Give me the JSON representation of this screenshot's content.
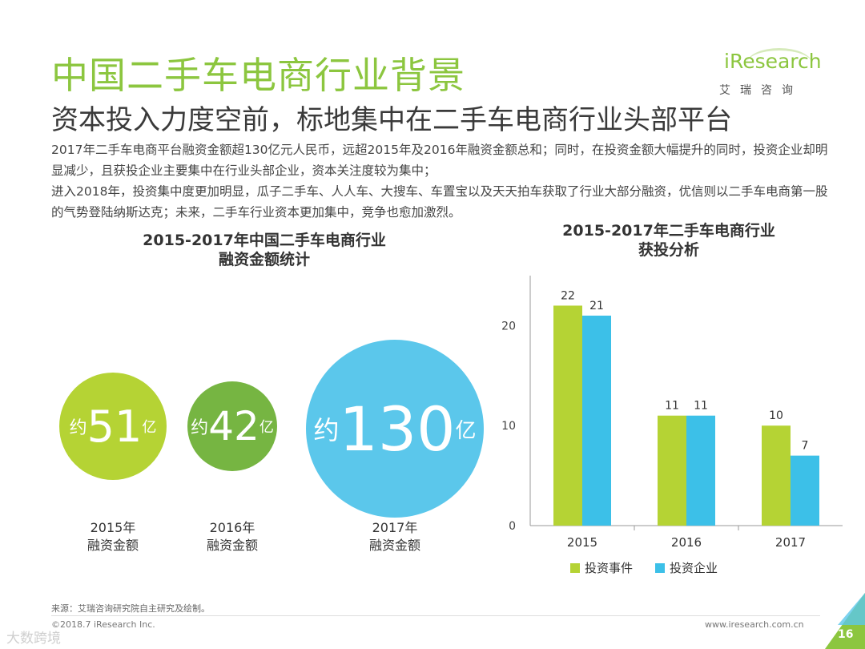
{
  "header": {
    "title": "中国二手车电商行业背景",
    "subtitle": "资本投入力度空前，标地集中在二手车电商行业头部平台",
    "para1": "2017年二手车电商平台融资金额超130亿元人民币，远超2015年及2016年融资金额总和；同时，在投资金额大幅提升的同时，投资企业却明显减少，且获投企业主要集中在行业头部企业，资本关注度较为集中；",
    "para2": "进入2018年，投资集中度更加明显，瓜子二手车、人人车、大搜车、车置宝以及天天拍车获取了行业大部分融资，优信则以二手车电商第一股的气势登陆纳斯达克；未来，二手车行业资本更加集中，竞争也愈加激烈。"
  },
  "logo": {
    "text": "iResearch",
    "sub": "艾瑞咨询"
  },
  "bubbles": {
    "title_line1": "2015-2017年中国二手车电商行业",
    "title_line2": "融资金额统计",
    "prefix": "约",
    "suffix": "亿",
    "items": [
      {
        "value": "51",
        "year": "2015年",
        "label": "融资金额",
        "color": "#b5d334"
      },
      {
        "value": "42",
        "year": "2016年",
        "label": "融资金额",
        "color": "#76b542"
      },
      {
        "value": "130",
        "year": "2017年",
        "label": "融资金额",
        "color": "#5bc7eb"
      }
    ]
  },
  "chart_data": {
    "type": "bar",
    "title": "2015-2017年二手车电商行业获投分析",
    "title_line1": "2015-2017年二手车电商行业",
    "title_line2": "获投分析",
    "categories": [
      "2015",
      "2016",
      "2017"
    ],
    "series": [
      {
        "name": "投资事件",
        "values": [
          22,
          11,
          10
        ],
        "color": "#b5d334"
      },
      {
        "name": "投资企业",
        "values": [
          21,
          11,
          7
        ],
        "color": "#3cc0e8"
      }
    ],
    "yticks": [
      0,
      10,
      20
    ],
    "ylim": [
      0,
      25
    ],
    "grid": false,
    "legend": "bottom"
  },
  "footer": {
    "source": "来源：艾瑞咨询研究院自主研究及绘制。",
    "copyright": "©2018.7 iResearch Inc.",
    "site": "www.iresearch.com.cn",
    "page": "16",
    "watermark": "大数跨境"
  }
}
